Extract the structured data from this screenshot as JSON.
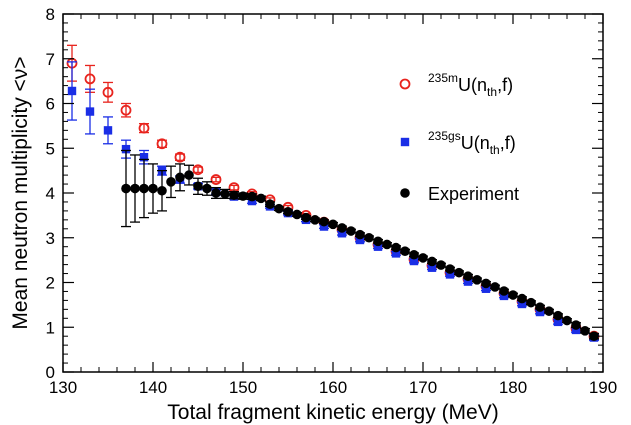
{
  "chart_data": {
    "type": "scatter",
    "xlabel": "Total fragment kinetic energy (MeV)",
    "ylabel": "Mean neutron multiplicity <ν>",
    "xlim": [
      130,
      190
    ],
    "ylim": [
      0,
      8
    ],
    "x_ticks": [
      "130",
      "140",
      "150",
      "160",
      "170",
      "180",
      "190"
    ],
    "y_ticks": [
      "0",
      "1",
      "2",
      "3",
      "4",
      "5",
      "6",
      "7",
      "8"
    ],
    "grid": false,
    "legend_position": "right",
    "series": [
      {
        "name": "235mU(nth,f)",
        "legend": {
          "sup": "235m",
          "base": "U(n",
          "sub": "th",
          "tail": ",f)"
        },
        "marker": "open-circle",
        "color": "#e8231d",
        "x": [
          131,
          133,
          135,
          137,
          139,
          141,
          143,
          145,
          147,
          149,
          151,
          153,
          155,
          157,
          159,
          161,
          163,
          165,
          167,
          169,
          171,
          173,
          175,
          177,
          179,
          181,
          183,
          185,
          187,
          189
        ],
        "y": [
          6.9,
          6.55,
          6.25,
          5.85,
          5.45,
          5.1,
          4.8,
          4.52,
          4.3,
          4.12,
          3.98,
          3.85,
          3.68,
          3.5,
          3.35,
          3.18,
          3.0,
          2.85,
          2.7,
          2.52,
          2.38,
          2.22,
          2.08,
          1.92,
          1.76,
          1.58,
          1.4,
          1.18,
          0.98,
          0.8
        ],
        "err": [
          0.4,
          0.3,
          0.22,
          0.15,
          0.1,
          0.08,
          0.07,
          0.06,
          0.05,
          0.05,
          0.05,
          0.04,
          0.04,
          0.04,
          0.04,
          0.04,
          0.04,
          0.04,
          0.04,
          0.04,
          0.04,
          0.04,
          0.04,
          0.04,
          0.04,
          0.04,
          0.04,
          0.05,
          0.05,
          0.06
        ]
      },
      {
        "name": "235gsU(nth,f)",
        "legend": {
          "sup": "235gs",
          "base": "U(n",
          "sub": "th",
          "tail": ",f)"
        },
        "marker": "filled-square",
        "color": "#1a2ee6",
        "x": [
          131,
          133,
          135,
          137,
          139,
          141,
          143,
          145,
          147,
          149,
          151,
          153,
          155,
          157,
          159,
          161,
          163,
          165,
          167,
          169,
          171,
          173,
          175,
          177,
          179,
          181,
          183,
          185,
          187,
          189
        ],
        "y": [
          6.28,
          5.82,
          5.4,
          4.98,
          4.8,
          4.5,
          4.3,
          4.15,
          4.02,
          3.92,
          3.82,
          3.7,
          3.55,
          3.4,
          3.25,
          3.1,
          2.95,
          2.8,
          2.65,
          2.48,
          2.33,
          2.18,
          2.02,
          1.86,
          1.7,
          1.52,
          1.34,
          1.12,
          0.94,
          0.77
        ],
        "err": [
          0.65,
          0.5,
          0.3,
          0.2,
          0.15,
          0.1,
          0.08,
          0.06,
          0.05,
          0.05,
          0.05,
          0.04,
          0.04,
          0.04,
          0.04,
          0.04,
          0.04,
          0.04,
          0.04,
          0.04,
          0.04,
          0.04,
          0.04,
          0.04,
          0.04,
          0.04,
          0.04,
          0.05,
          0.05,
          0.06
        ]
      },
      {
        "name": "Experiment",
        "legend": {
          "sup": "",
          "base": "Experiment",
          "sub": "",
          "tail": ""
        },
        "marker": "filled-circle",
        "color": "#000000",
        "x": [
          137,
          138,
          139,
          140,
          141,
          142,
          143,
          144,
          145,
          146,
          147,
          148,
          149,
          150,
          151,
          152,
          153,
          154,
          155,
          156,
          157,
          158,
          159,
          160,
          161,
          162,
          163,
          164,
          165,
          166,
          167,
          168,
          169,
          170,
          171,
          172,
          173,
          174,
          175,
          176,
          177,
          178,
          179,
          180,
          181,
          182,
          183,
          184,
          185,
          186,
          187,
          188,
          189
        ],
        "y": [
          4.1,
          4.1,
          4.1,
          4.1,
          4.05,
          4.25,
          4.35,
          4.4,
          4.15,
          4.1,
          4.0,
          3.98,
          3.95,
          3.93,
          3.92,
          3.88,
          3.75,
          3.65,
          3.58,
          3.52,
          3.45,
          3.4,
          3.36,
          3.3,
          3.22,
          3.15,
          3.07,
          3.0,
          2.92,
          2.85,
          2.78,
          2.7,
          2.62,
          2.55,
          2.47,
          2.39,
          2.3,
          2.22,
          2.14,
          2.06,
          1.98,
          1.9,
          1.81,
          1.72,
          1.64,
          1.55,
          1.45,
          1.36,
          1.26,
          1.15,
          1.05,
          0.92,
          0.8
        ],
        "err": [
          0.85,
          0.75,
          0.65,
          0.55,
          0.45,
          0.35,
          0.3,
          0.22,
          0.18,
          0.15,
          0.12,
          0.1,
          0.08,
          0.07,
          0.06,
          0.05,
          0.05,
          0.04,
          0.04,
          0.04,
          0.04,
          0.04,
          0.04,
          0.04,
          0.04,
          0.04,
          0.04,
          0.04,
          0.04,
          0.04,
          0.04,
          0.04,
          0.04,
          0.04,
          0.04,
          0.04,
          0.04,
          0.04,
          0.04,
          0.04,
          0.04,
          0.04,
          0.04,
          0.04,
          0.04,
          0.04,
          0.04,
          0.04,
          0.04,
          0.04,
          0.05,
          0.05,
          0.06
        ]
      }
    ]
  }
}
